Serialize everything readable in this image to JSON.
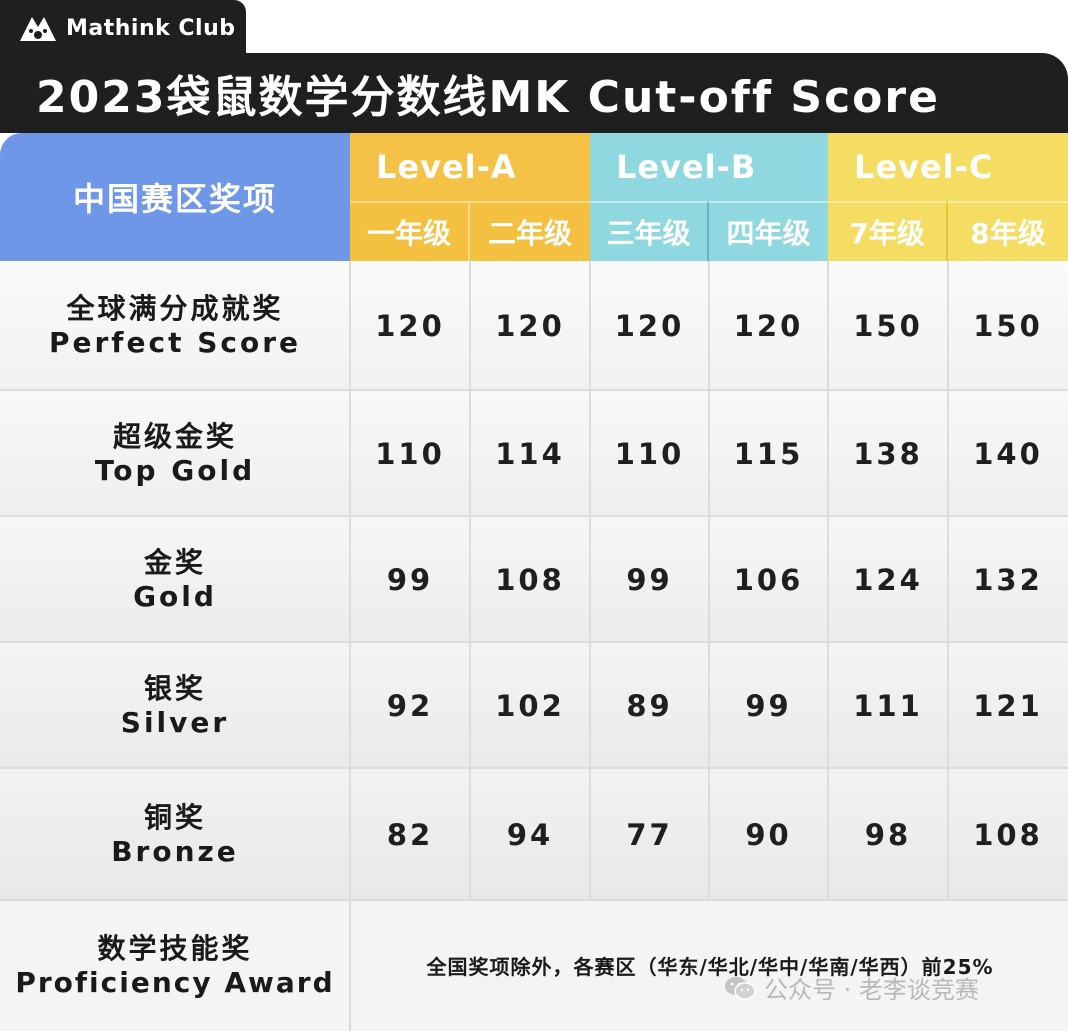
{
  "brand": {
    "name": "Mathink Club",
    "icon": "paw-logo-icon"
  },
  "title": "2023袋鼠数学分数线MK Cut-off Score",
  "table": {
    "corner_header": "中国赛区奖项",
    "levels": [
      {
        "label": "Level-A",
        "grades": [
          "一年级",
          "二年级"
        ],
        "color": "#f4c247"
      },
      {
        "label": "Level-B",
        "grades": [
          "三年级",
          "四年级"
        ],
        "color": "#8fd8df"
      },
      {
        "label": "Level-C",
        "grades": [
          "7年级",
          "8年级"
        ],
        "color": "#f5dc62"
      }
    ],
    "rows": [
      {
        "zh": "全球满分成就奖",
        "en": "Perfect Score",
        "scores": [
          "120",
          "120",
          "120",
          "120",
          "150",
          "150"
        ]
      },
      {
        "zh": "超级金奖",
        "en": "Top Gold",
        "scores": [
          "110",
          "114",
          "110",
          "115",
          "138",
          "140"
        ]
      },
      {
        "zh": "金奖",
        "en": "Gold",
        "scores": [
          "99",
          "108",
          "99",
          "106",
          "124",
          "132"
        ]
      },
      {
        "zh": "银奖",
        "en": "Silver",
        "scores": [
          "92",
          "102",
          "89",
          "99",
          "111",
          "121"
        ]
      },
      {
        "zh": "铜奖",
        "en": "Bronze",
        "scores": [
          "82",
          "94",
          "77",
          "90",
          "98",
          "108"
        ]
      }
    ],
    "proficiency": {
      "zh": "数学技能奖",
      "en": "Proficiency Award",
      "note": "全国奖项除外，各赛区（华东/华北/华中/华南/华西）前25%"
    }
  },
  "watermark": {
    "text": "公众号 · 老李谈竞赛",
    "icon": "wechat-icon"
  },
  "colors": {
    "dark": "#1f1f1f",
    "award_header": "#6f97e8",
    "level_a": "#f4c247",
    "level_b": "#8fd8df",
    "level_c": "#f5dc62"
  }
}
